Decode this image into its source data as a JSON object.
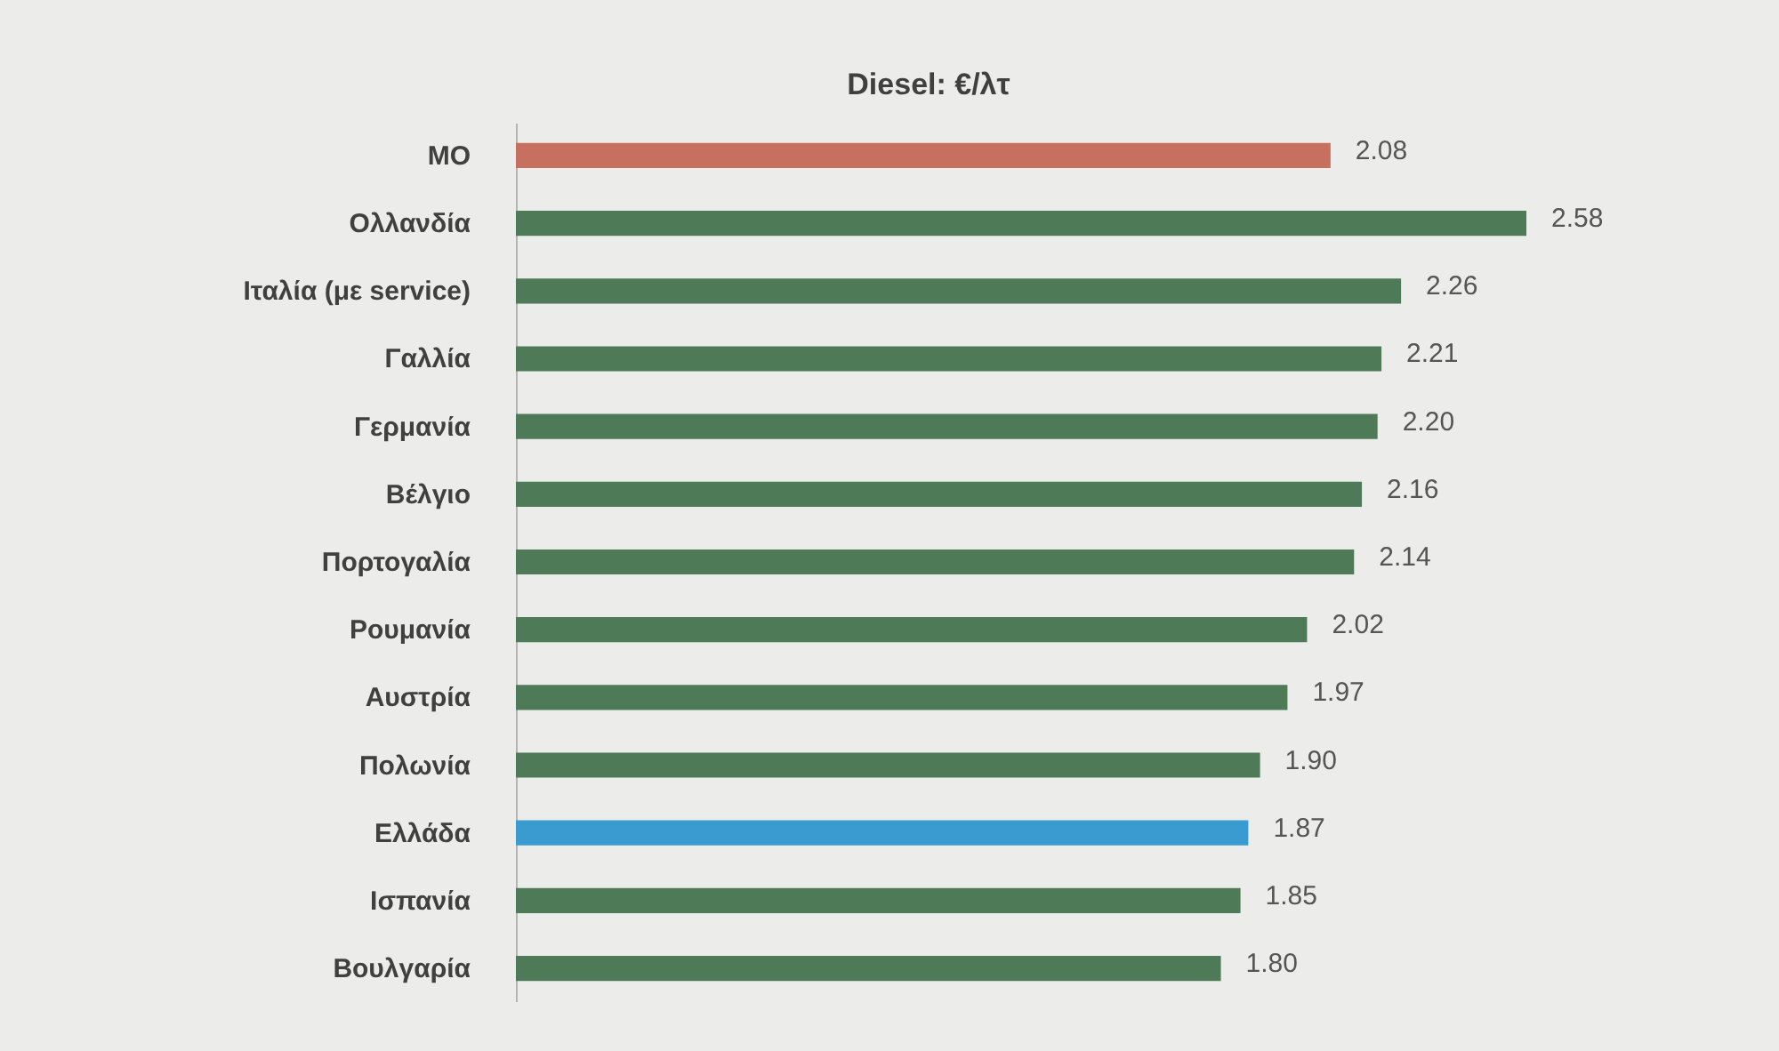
{
  "chart_data": {
    "type": "bar",
    "orientation": "horizontal",
    "title": "Diesel: €/λτ",
    "categories": [
      "ΜΟ",
      "Ολλανδία",
      "Ιταλία (με service)",
      "Γαλλία",
      "Γερμανία",
      "Βέλγιο",
      "Πορτογαλία",
      "Ρουμανία",
      "Αυστρία",
      "Πολωνία",
      "Ελλάδα",
      "Ισπανία",
      "Βουλγαρία"
    ],
    "values": [
      2.08,
      2.58,
      2.26,
      2.21,
      2.2,
      2.16,
      2.14,
      2.02,
      1.97,
      1.9,
      1.87,
      1.85,
      1.8
    ],
    "colors": [
      "#c8705f",
      "#4e7a58",
      "#4e7a58",
      "#4e7a58",
      "#4e7a58",
      "#4e7a58",
      "#4e7a58",
      "#4e7a58",
      "#4e7a58",
      "#4e7a58",
      "#3a9bd0",
      "#4e7a58",
      "#4e7a58"
    ],
    "value_labels": [
      "2.08",
      "2.58",
      "2.26",
      "2.21",
      "2.20",
      "2.16",
      "2.14",
      "2.02",
      "1.97",
      "1.90",
      "1.87",
      "1.85",
      "1.80"
    ],
    "tick_labels": "y"
  }
}
